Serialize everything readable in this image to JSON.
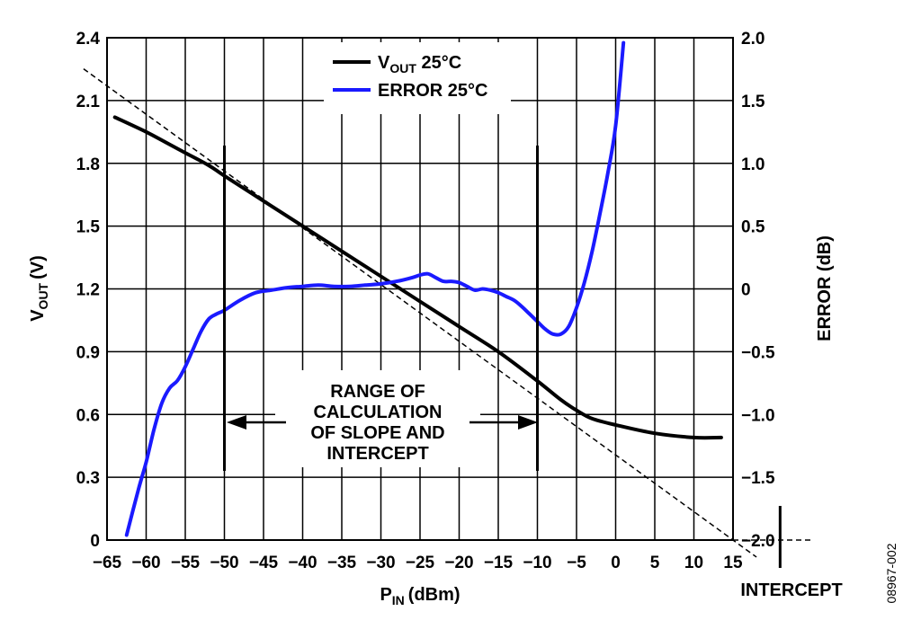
{
  "chart_data": {
    "type": "line",
    "xlabel": "P",
    "xlabel_sub": "IN",
    "xlabel_unit": "(dBm)",
    "ylabel": "V",
    "ylabel_sub": "OUT",
    "ylabel_unit": "(V)",
    "y2label": "ERROR (dB)",
    "xlim": [
      -65,
      15
    ],
    "ylim": [
      0,
      2.4
    ],
    "y2lim": [
      -2.0,
      2.0
    ],
    "grid": true,
    "legend_position": "top-center",
    "x_tick_labels": [
      "−65",
      "−60",
      "−55",
      "−50",
      "−45",
      "−40",
      "−35",
      "−30",
      "−25",
      "−20",
      "−15",
      "−10",
      "−5",
      "0",
      "5",
      "10",
      "15"
    ],
    "y_tick_labels": [
      "0",
      "0.3",
      "0.6",
      "0.9",
      "1.2",
      "1.5",
      "1.8",
      "2.1",
      "2.4"
    ],
    "y2_tick_labels": [
      "−2.0",
      "−1.5",
      "−1.0",
      "−0.5",
      "0",
      "0.5",
      "1.0",
      "1.5",
      "2.0"
    ],
    "series": [
      {
        "name": "V",
        "name_sub": "OUT",
        "name_suffix": " 25°C",
        "color": "#000000",
        "axis": "left",
        "x": [
          -64,
          -60,
          -57,
          -55,
          -52,
          -50,
          -45,
          -40,
          -35,
          -30,
          -25,
          -20,
          -15,
          -10,
          -7,
          -5,
          -3,
          0,
          5,
          10,
          13.5
        ],
        "y": [
          2.02,
          1.95,
          1.89,
          1.85,
          1.79,
          1.74,
          1.62,
          1.5,
          1.38,
          1.26,
          1.14,
          1.02,
          0.9,
          0.76,
          0.67,
          0.62,
          0.58,
          0.55,
          0.51,
          0.49,
          0.49
        ]
      },
      {
        "name": "ERROR 25°C",
        "color": "#1a1aff",
        "axis": "right",
        "x": [
          -62.5,
          -61,
          -60,
          -59,
          -58,
          -57,
          -56,
          -55,
          -54,
          -53,
          -52,
          -51,
          -50,
          -48,
          -46,
          -44,
          -42,
          -40,
          -38,
          -36,
          -34,
          -32,
          -30,
          -28,
          -26,
          -25,
          -24,
          -23,
          -22,
          -21,
          -20,
          -19,
          -18,
          -17,
          -16,
          -15,
          -14,
          -13,
          -12,
          -11,
          -10,
          -9,
          -8,
          -7,
          -6,
          -5,
          -4,
          -3,
          -2,
          -1,
          0,
          1
        ],
        "y": [
          -1.96,
          -1.6,
          -1.38,
          -1.12,
          -0.91,
          -0.79,
          -0.73,
          -0.62,
          -0.48,
          -0.34,
          -0.24,
          -0.2,
          -0.17,
          -0.09,
          -0.03,
          -0.01,
          0.01,
          0.02,
          0.03,
          0.02,
          0.02,
          0.03,
          0.04,
          0.06,
          0.09,
          0.11,
          0.12,
          0.09,
          0.06,
          0.06,
          0.05,
          0.02,
          -0.01,
          0.0,
          -0.01,
          -0.03,
          -0.06,
          -0.09,
          -0.14,
          -0.2,
          -0.26,
          -0.32,
          -0.36,
          -0.36,
          -0.3,
          -0.15,
          0.05,
          0.3,
          0.6,
          0.92,
          1.3,
          1.96
        ]
      }
    ],
    "dashed_line": {
      "x": [
        -65,
        15
      ],
      "y": [
        2.17,
        0.0
      ]
    },
    "range_markers": [
      -50,
      -10
    ],
    "intercept_x": 15.5,
    "annotation_lines": [
      "RANGE OF",
      "CALCULATION",
      "OF SLOPE AND",
      "INTERCEPT"
    ],
    "intercept_label": "INTERCEPT",
    "figure_id": "08967-002"
  }
}
